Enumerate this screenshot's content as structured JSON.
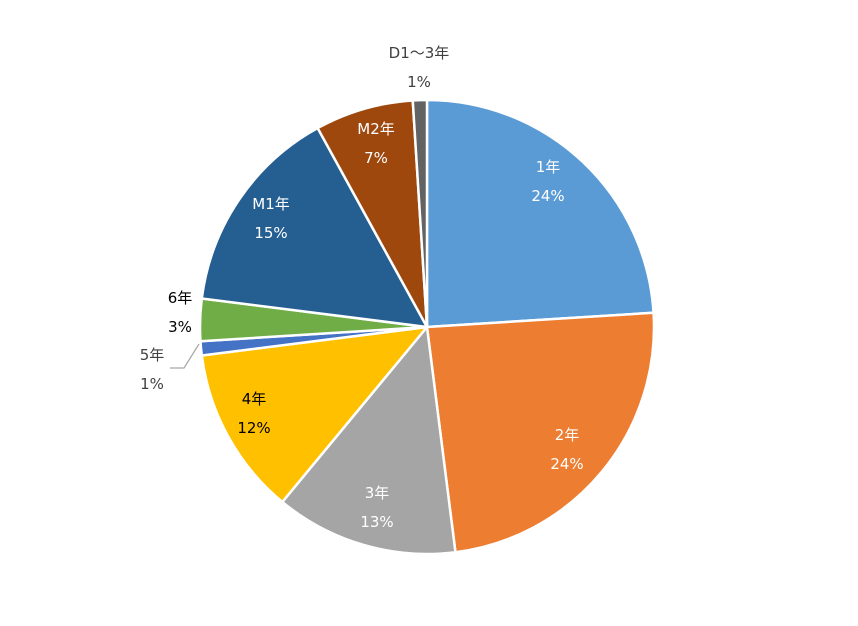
{
  "chart_data": {
    "type": "pie",
    "title": "",
    "slices": [
      {
        "name": "1年",
        "value": 24,
        "pct_label": "24%",
        "color": "#5B9BD5",
        "label_color": "#ffffff"
      },
      {
        "name": "2年",
        "value": 24,
        "pct_label": "24%",
        "color": "#ED7D31",
        "label_color": "#ffffff"
      },
      {
        "name": "3年",
        "value": 13,
        "pct_label": "13%",
        "color": "#A5A5A5",
        "label_color": "#ffffff"
      },
      {
        "name": "4年",
        "value": 12,
        "pct_label": "12%",
        "color": "#FFC000",
        "label_color": "#000000"
      },
      {
        "name": "5年",
        "value": 1,
        "pct_label": "1%",
        "color": "#4472C4",
        "label_color": "#404040"
      },
      {
        "name": "6年",
        "value": 3,
        "pct_label": "3%",
        "color": "#70AD47",
        "label_color": "#000000"
      },
      {
        "name": "M1年",
        "value": 15,
        "pct_label": "15%",
        "color": "#255E91",
        "label_color": "#ffffff"
      },
      {
        "name": "M2年",
        "value": 7,
        "pct_label": "7%",
        "color": "#9E480E",
        "label_color": "#ffffff"
      },
      {
        "name": "D1～3年",
        "value": 1,
        "pct_label": "1%",
        "color": "#636363",
        "label_color": "#404040"
      }
    ]
  }
}
